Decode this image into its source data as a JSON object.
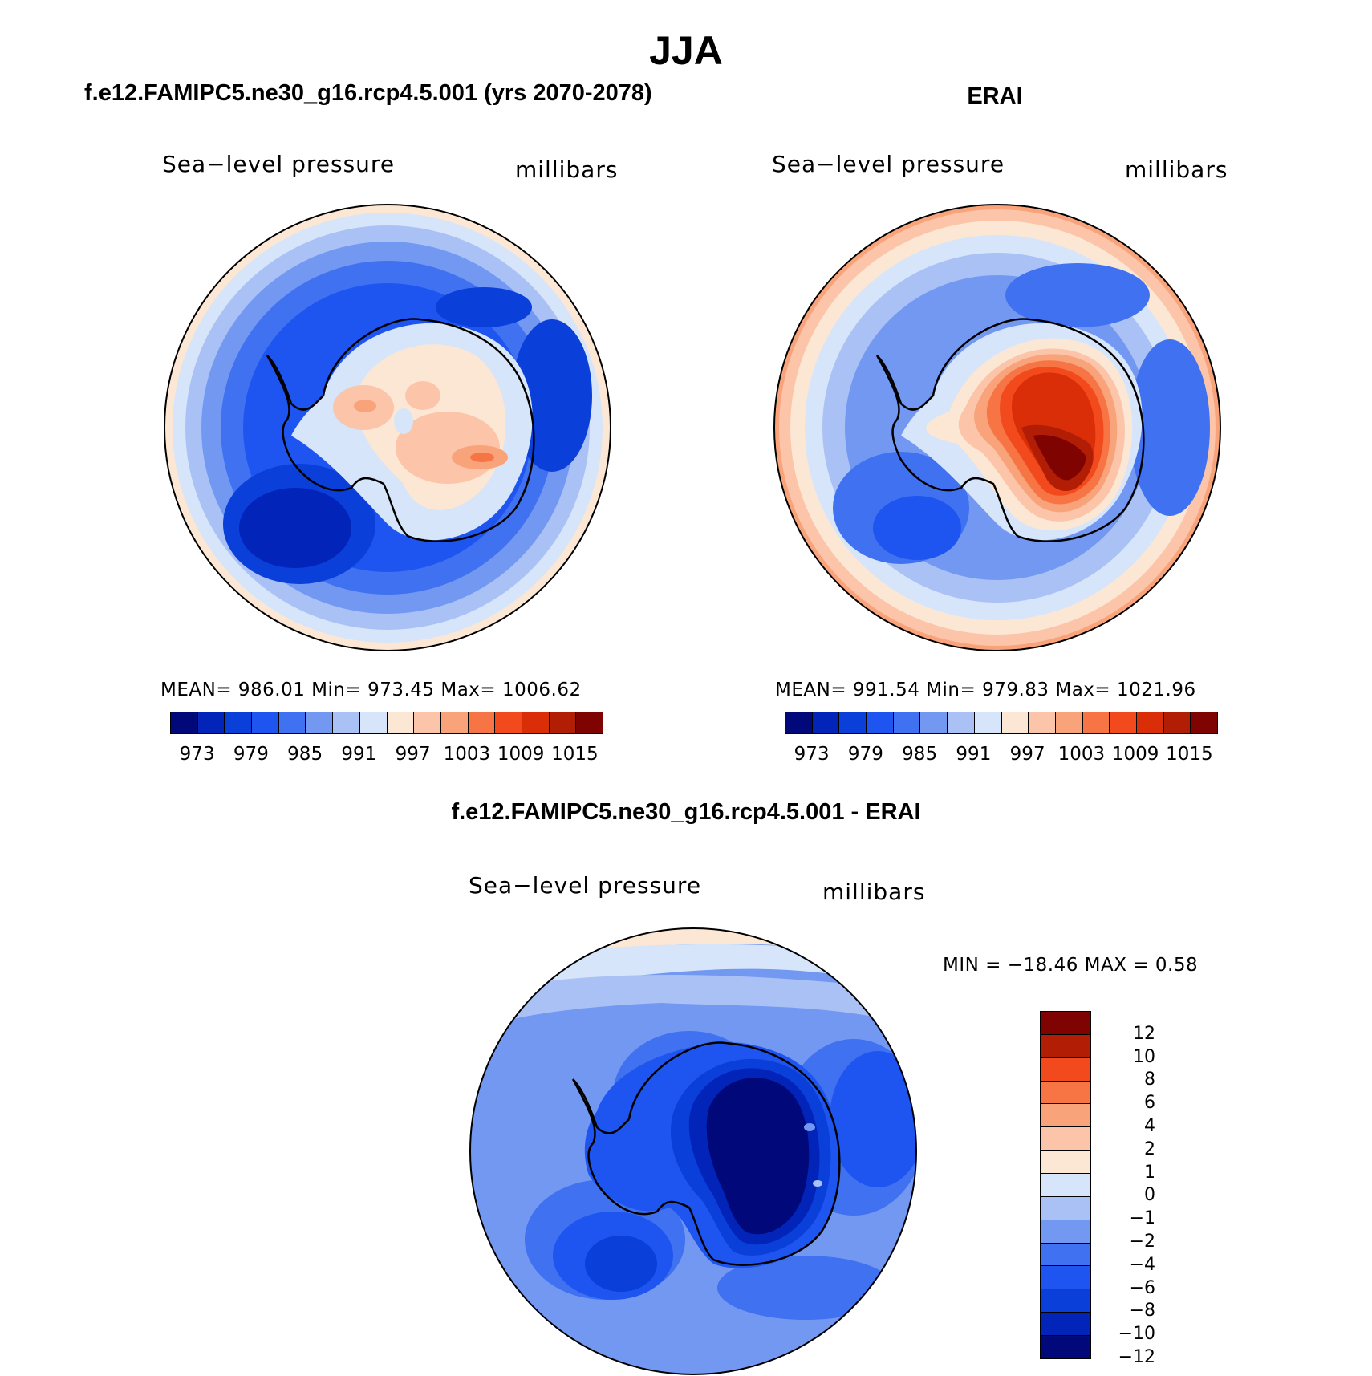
{
  "title": "JJA",
  "colors": {
    "abs_palette": [
      "#00087a",
      "#0224b8",
      "#0a3fd9",
      "#1e55f0",
      "#3f71f0",
      "#7398f2",
      "#a9c1f5",
      "#d6e5f9",
      "#fce7d4",
      "#fcc4a8",
      "#f9a37b",
      "#f77545",
      "#f24a1c",
      "#d92e08",
      "#b21e05",
      "#7e0301"
    ],
    "diff_palette": [
      "#7e0301",
      "#b21e05",
      "#f24a1c",
      "#f77545",
      "#f9a37b",
      "#fcc4a8",
      "#fce7d4",
      "#d6e5f9",
      "#a9c1f5",
      "#7398f2",
      "#3f71f0",
      "#1e55f0",
      "#0a3fd9",
      "#0224b8",
      "#00087a"
    ]
  },
  "panels": [
    {
      "title": "f.e12.FAMIPC5.ne30_g16.rcp4.5.001 (yrs 2070-2078)",
      "variable": "Sea−level pressure",
      "units": "millibars",
      "stats": "MEAN= 986.01   Min= 973.45   Max= 1006.62",
      "colorbar_labels": [
        "973",
        "979",
        "985",
        "991",
        "997",
        "1003",
        "1009",
        "1015"
      ]
    },
    {
      "title": "ERAI",
      "variable": "Sea−level pressure",
      "units": "millibars",
      "stats": "MEAN= 991.54   Min= 979.83   Max= 1021.96",
      "colorbar_labels": [
        "973",
        "979",
        "985",
        "991",
        "997",
        "1003",
        "1009",
        "1015"
      ]
    },
    {
      "title": "f.e12.FAMIPC5.ne30_g16.rcp4.5.001 - ERAI",
      "variable": "Sea−level pressure",
      "units": "millibars",
      "stats": "MIN = −18.46 MAX =    0.58",
      "colorbar_labels": [
        "12",
        "10",
        "8",
        "6",
        "4",
        "2",
        "1",
        "0",
        "−1",
        "−2",
        "−4",
        "−6",
        "−8",
        "−10",
        "−12"
      ]
    }
  ]
}
